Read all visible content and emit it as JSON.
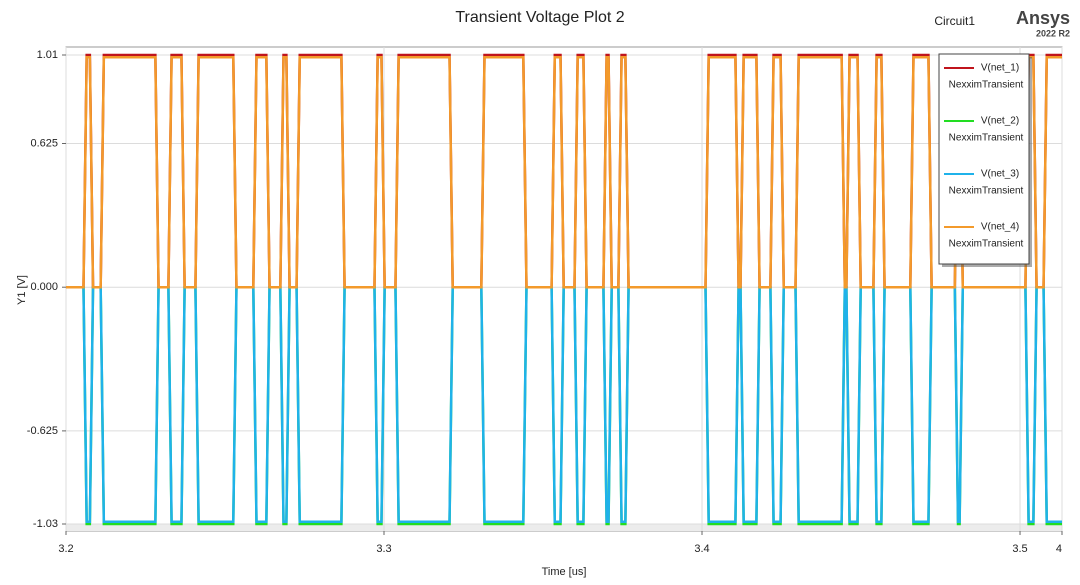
{
  "header": {
    "circuit": "Circuit1",
    "brand": "Ansys",
    "version": "2022 R2"
  },
  "chart_data": {
    "type": "line",
    "title": "Transient Voltage Plot 2",
    "x_label": "Time [us]",
    "y_label": "Y1 [V]",
    "x": [
      3.2,
      3.2055,
      3.2065,
      3.2075,
      3.2085,
      3.2109,
      3.2119,
      3.2281,
      3.2291,
      3.2322,
      3.2332,
      3.2363,
      3.2373,
      3.2407,
      3.2417,
      3.2526,
      3.2536,
      3.2589,
      3.2599,
      3.263,
      3.264,
      3.2674,
      3.2684,
      3.2693,
      3.2703,
      3.2725,
      3.2735,
      3.2866,
      3.2876,
      3.297,
      3.298,
      3.2992,
      3.3002,
      3.3036,
      3.3046,
      3.3206,
      3.3216,
      3.3306,
      3.3316,
      3.3438,
      3.3448,
      3.3527,
      3.3537,
      3.3555,
      3.3565,
      3.3599,
      3.3609,
      3.3627,
      3.3637,
      3.369,
      3.37,
      3.3706,
      3.3716,
      3.3737,
      3.3747,
      3.3759,
      3.3769,
      3.4011,
      3.4021,
      3.4105,
      3.4115,
      3.4121,
      3.4131,
      3.4171,
      3.4181,
      3.4215,
      3.4225,
      3.4247,
      3.4257,
      3.4294,
      3.4304,
      3.4439,
      3.4449,
      3.4454,
      3.4464,
      3.4489,
      3.4499,
      3.4539,
      3.4549,
      3.4564,
      3.4574,
      3.4655,
      3.4665,
      3.4712,
      3.4722,
      3.4795,
      3.4805,
      3.481,
      3.482,
      3.5017,
      3.5027,
      3.5042,
      3.5052,
      3.5074,
      3.5084,
      3.5132
    ],
    "series": [
      {
        "name": "V(net_1)",
        "solution": "NexximTransient",
        "color": "#c0141c",
        "values": [
          0,
          0,
          1.01,
          1.01,
          0,
          0,
          1.01,
          1.01,
          0,
          0,
          1.01,
          1.01,
          0,
          0,
          1.01,
          1.01,
          0,
          0,
          1.01,
          1.01,
          0,
          0,
          1.01,
          1.01,
          0,
          0,
          1.01,
          1.01,
          0,
          0,
          1.01,
          1.01,
          0,
          0,
          1.01,
          1.01,
          0,
          0,
          1.01,
          1.01,
          0,
          0,
          1.01,
          1.01,
          0,
          0,
          1.01,
          1.01,
          0,
          0,
          1.01,
          1.01,
          0,
          0,
          1.01,
          1.01,
          0,
          0,
          1.01,
          1.01,
          0,
          0,
          1.01,
          1.01,
          0,
          0,
          1.01,
          1.01,
          0,
          0,
          1.01,
          1.01,
          0,
          0,
          1.01,
          1.01,
          0,
          0,
          1.01,
          1.01,
          0,
          0,
          1.01,
          1.01,
          0,
          0,
          1.01,
          1.01,
          0,
          0,
          1.01,
          1.01,
          0,
          0,
          1.01,
          1.01
        ]
      },
      {
        "name": "V(net_2)",
        "solution": "NexximTransient",
        "color": "#22dd22",
        "values": [
          0,
          0,
          -1.03,
          -1.03,
          0,
          0,
          -1.03,
          -1.03,
          0,
          0,
          -1.03,
          -1.03,
          0,
          0,
          -1.03,
          -1.03,
          0,
          0,
          -1.03,
          -1.03,
          0,
          0,
          -1.03,
          -1.03,
          0,
          0,
          -1.03,
          -1.03,
          0,
          0,
          -1.03,
          -1.03,
          0,
          0,
          -1.03,
          -1.03,
          0,
          0,
          -1.03,
          -1.03,
          0,
          0,
          -1.03,
          -1.03,
          0,
          0,
          -1.03,
          -1.03,
          0,
          0,
          -1.03,
          -1.03,
          0,
          0,
          -1.03,
          -1.03,
          0,
          0,
          -1.03,
          -1.03,
          0,
          0,
          -1.03,
          -1.03,
          0,
          0,
          -1.03,
          -1.03,
          0,
          0,
          -1.03,
          -1.03,
          0,
          0,
          -1.03,
          -1.03,
          0,
          0,
          -1.03,
          -1.03,
          0,
          0,
          -1.03,
          -1.03,
          0,
          0,
          -1.03,
          -1.03,
          0,
          0,
          -1.03,
          -1.03,
          0,
          0,
          -1.03,
          -1.03
        ]
      },
      {
        "name": "V(net_3)",
        "solution": "NexximTransient",
        "color": "#1fb2ea",
        "values": [
          0,
          0,
          -1.02,
          -1.02,
          0,
          0,
          -1.02,
          -1.02,
          0,
          0,
          -1.02,
          -1.02,
          0,
          0,
          -1.02,
          -1.02,
          0,
          0,
          -1.02,
          -1.02,
          0,
          0,
          -1.02,
          -1.02,
          0,
          0,
          -1.02,
          -1.02,
          0,
          0,
          -1.02,
          -1.02,
          0,
          0,
          -1.02,
          -1.02,
          0,
          0,
          -1.02,
          -1.02,
          0,
          0,
          -1.02,
          -1.02,
          0,
          0,
          -1.02,
          -1.02,
          0,
          0,
          -1.02,
          -1.02,
          0,
          0,
          -1.02,
          -1.02,
          0,
          0,
          -1.02,
          -1.02,
          0,
          0,
          -1.02,
          -1.02,
          0,
          0,
          -1.02,
          -1.02,
          0,
          0,
          -1.02,
          -1.02,
          0,
          0,
          -1.02,
          -1.02,
          0,
          0,
          -1.02,
          -1.02,
          0,
          0,
          -1.02,
          -1.02,
          0,
          0,
          -1.02,
          -1.02,
          0,
          0,
          -1.02,
          -1.02,
          0,
          0,
          -1.02,
          -1.02
        ]
      },
      {
        "name": "V(net_4)",
        "solution": "NexximTransient",
        "color": "#f39a2b",
        "values": [
          0,
          0,
          1.0,
          1.0,
          0,
          0,
          1.0,
          1.0,
          0,
          0,
          1.0,
          1.0,
          0,
          0,
          1.0,
          1.0,
          0,
          0,
          1.0,
          1.0,
          0,
          0,
          1.0,
          1.0,
          0,
          0,
          1.0,
          1.0,
          0,
          0,
          1.0,
          1.0,
          0,
          0,
          1.0,
          1.0,
          0,
          0,
          1.0,
          1.0,
          0,
          0,
          1.0,
          1.0,
          0,
          0,
          1.0,
          1.0,
          0,
          0,
          1.0,
          1.0,
          0,
          0,
          1.0,
          1.0,
          0,
          0,
          1.0,
          1.0,
          0,
          0,
          1.0,
          1.0,
          0,
          0,
          1.0,
          1.0,
          0,
          0,
          1.0,
          1.0,
          0,
          0,
          1.0,
          1.0,
          0,
          0,
          1.0,
          1.0,
          0,
          0,
          1.0,
          1.0,
          0,
          0,
          1.0,
          1.0,
          0,
          0,
          1.0,
          1.0,
          0,
          0,
          1.0,
          1.0
        ]
      }
    ],
    "xlim": [
      3.2,
      3.5132
    ],
    "xticks": [
      3.2,
      3.3,
      3.4,
      3.5,
      {
        "value": 3.5132,
        "label": "4"
      }
    ],
    "ylim": [
      -1.03,
      1.01
    ],
    "yticks": [
      {
        "value": -1.03,
        "label": "-1.03"
      },
      -0.625,
      {
        "value": 0,
        "label": "0.000"
      },
      0.625,
      1.01
    ],
    "grid": true,
    "legend": "top-right"
  }
}
